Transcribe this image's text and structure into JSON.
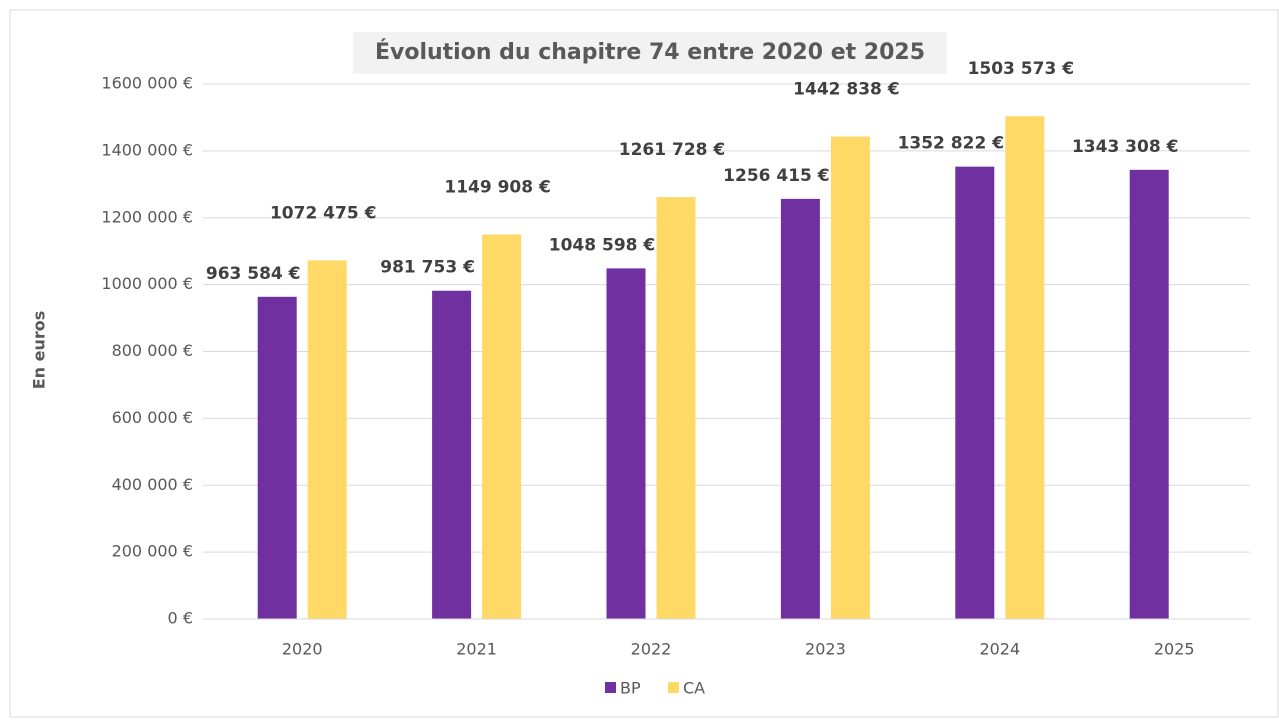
{
  "chart_data": {
    "type": "bar",
    "title": "Évolution du chapitre 74 entre 2020 et 2025",
    "y_label": "En euros",
    "categories": [
      "2020",
      "2021",
      "2022",
      "2023",
      "2024",
      "2025"
    ],
    "series": [
      {
        "name": "BP",
        "color": "#7030a0",
        "values": [
          963584,
          981753,
          1048598,
          1256415,
          1352822,
          1343308
        ],
        "value_labels": [
          "963 584 €",
          "981 753 €",
          "1048 598 €",
          "1256 415 €",
          "1352 822 €",
          "1343 308 €"
        ]
      },
      {
        "name": "CA",
        "color": "#ffd966",
        "values": [
          1072475,
          1149908,
          1261728,
          1442838,
          1503573,
          null
        ],
        "value_labels": [
          "1072 475 €",
          "1149 908 €",
          "1261 728 €",
          "1442 838 €",
          "1503 573 €",
          null
        ]
      }
    ],
    "ylim": [
      0,
      1600000
    ],
    "yticks": [
      {
        "value": 0,
        "label": "0 €"
      },
      {
        "value": 200000,
        "label": "200 000 €"
      },
      {
        "value": 400000,
        "label": "400 000 €"
      },
      {
        "value": 600000,
        "label": "600 000 €"
      },
      {
        "value": 800000,
        "label": "800 000 €"
      },
      {
        "value": 1000000,
        "label": "1000 000 €"
      },
      {
        "value": 1200000,
        "label": "1200 000 €"
      },
      {
        "value": 1400000,
        "label": "1400 000 €"
      },
      {
        "value": 1600000,
        "label": "1600 000 €"
      }
    ],
    "grid": true,
    "legend": "bottom"
  }
}
